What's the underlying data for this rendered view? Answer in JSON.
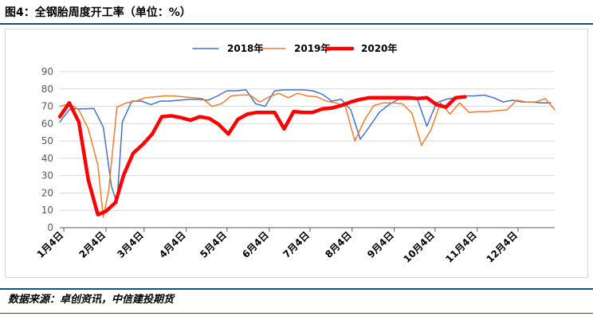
{
  "header": {
    "title": "图4：全钢胎周度开工率（单位：%）"
  },
  "footer": {
    "source": "数据来源：卓创资讯，中信建投期货"
  },
  "chart_data": {
    "type": "line",
    "title": "图4：全钢胎周度开工率（单位：%）",
    "xlabel": "",
    "ylabel": "",
    "ylim": [
      0,
      90
    ],
    "yticks": [
      0,
      10,
      20,
      30,
      40,
      50,
      60,
      70,
      80,
      90
    ],
    "x_tick_labels": [
      "1月4日",
      "2月4日",
      "3月4日",
      "4月4日",
      "5月4日",
      "6月4日",
      "7月4日",
      "8月4日",
      "9月4日",
      "10月4日",
      "11月4日",
      "12月4日"
    ],
    "x_tick_positions": [
      4,
      35,
      63,
      94,
      124,
      155,
      185,
      216,
      247,
      277,
      308,
      338
    ],
    "xlim": [
      1,
      365
    ],
    "grid": "horizontal",
    "legend_position": "top",
    "series": [
      {
        "name": "2018年",
        "color": "#4472c4",
        "width": 1.5,
        "x": [
          1,
          8,
          12,
          19,
          26,
          33,
          39,
          43,
          47,
          54,
          61,
          68,
          75,
          82,
          89,
          96,
          103,
          110,
          117,
          124,
          131,
          138,
          145,
          152,
          159,
          166,
          173,
          180,
          187,
          194,
          201,
          208,
          215,
          222,
          229,
          236,
          243,
          250,
          257,
          264,
          271,
          278,
          285,
          292,
          299,
          306,
          313,
          320,
          327,
          334,
          341,
          348,
          355,
          362
        ],
        "values": [
          61,
          68,
          68.5,
          68.5,
          68.8,
          58,
          24,
          14,
          61,
          73,
          73,
          71,
          73,
          73,
          73.5,
          74,
          74,
          73.5,
          76,
          79,
          79,
          79.5,
          71.5,
          70,
          79,
          79.5,
          79.5,
          79.5,
          79,
          77,
          73,
          74,
          68,
          51,
          58.5,
          66.5,
          71,
          74,
          74,
          74,
          58.5,
          72,
          74,
          75,
          76,
          76,
          76.5,
          75,
          72.5,
          73.5,
          72.5,
          72.5,
          72,
          72
        ]
      },
      {
        "name": "2019年",
        "color": "#ed7d31",
        "width": 1.5,
        "x": [
          1,
          8,
          15,
          22,
          29,
          33,
          37,
          43,
          50,
          57,
          64,
          71,
          78,
          85,
          92,
          99,
          106,
          113,
          120,
          127,
          134,
          141,
          148,
          155,
          162,
          169,
          176,
          183,
          190,
          197,
          204,
          211,
          218,
          225,
          232,
          239,
          246,
          253,
          260,
          267,
          274,
          281,
          288,
          295,
          302,
          309,
          316,
          323,
          330,
          337,
          344,
          351,
          358,
          365
        ],
        "values": [
          70,
          71.5,
          68,
          57,
          36,
          6,
          21.5,
          69.5,
          72,
          73,
          75,
          75.5,
          76,
          76,
          75.5,
          75,
          74.5,
          70,
          71.5,
          76,
          76.5,
          76.5,
          72.5,
          75.5,
          77.5,
          75,
          77.5,
          76,
          75.5,
          73,
          72,
          70,
          50,
          62,
          70.5,
          72,
          72,
          71.5,
          66,
          47.5,
          56.5,
          72,
          65.5,
          72,
          66.5,
          67,
          67,
          67.5,
          68,
          73.5,
          72.5,
          72.5,
          74.5,
          68
        ]
      },
      {
        "name": "2020年",
        "color": "#ff0000",
        "width": 4.5,
        "x": [
          1,
          8,
          15,
          22,
          29,
          35,
          42,
          48,
          55,
          62,
          69,
          76,
          83,
          90,
          97,
          104,
          111,
          118,
          125,
          132,
          139,
          146,
          152,
          159,
          166,
          173,
          180,
          187,
          194,
          201,
          208,
          215,
          222,
          229,
          236,
          243,
          250,
          257,
          264,
          271,
          278,
          285,
          292,
          299
        ],
        "values": [
          64,
          72,
          61,
          27.5,
          7.5,
          9.5,
          14.5,
          30.5,
          43,
          48,
          54,
          64,
          64.5,
          63.5,
          62,
          64,
          63,
          59.5,
          54,
          62.5,
          65.5,
          66.5,
          66.5,
          66.5,
          57,
          67,
          66.5,
          66.5,
          68.5,
          69,
          70.5,
          72.5,
          74,
          75,
          75,
          75,
          75,
          75,
          74.5,
          75,
          71,
          69.5,
          75,
          75.5
        ]
      }
    ]
  }
}
